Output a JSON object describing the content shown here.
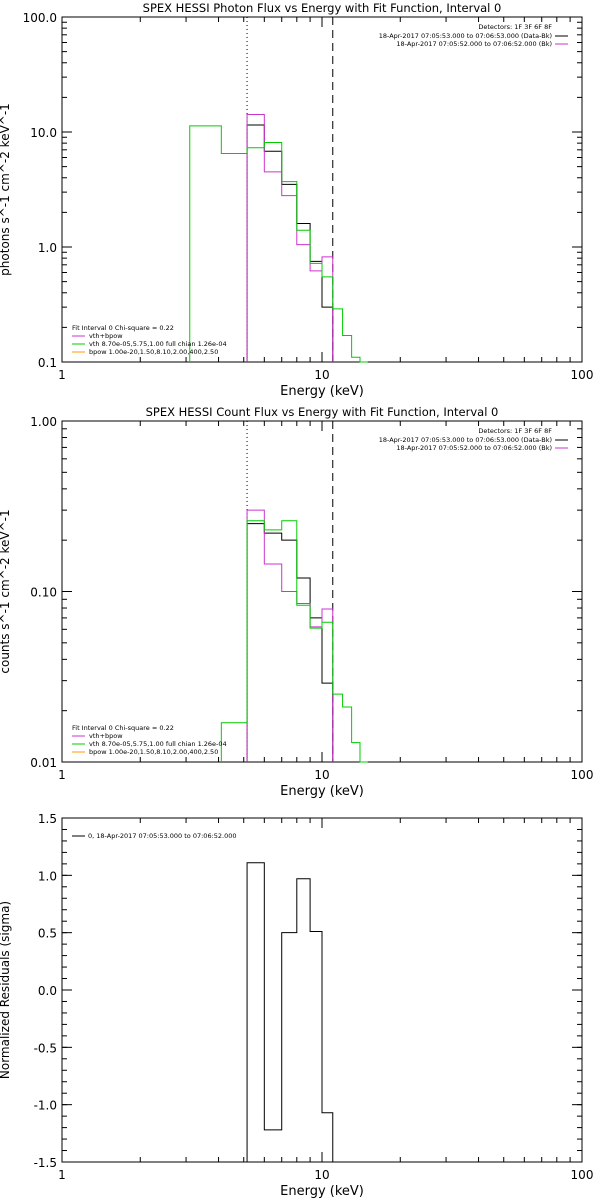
{
  "colors": {
    "background": "#ffffff",
    "axis": "#000000",
    "data": "#000000",
    "total_model": "#cc33cc",
    "vth": "#00cc00",
    "bpow": "#ff9900"
  },
  "chart_data": [
    {
      "type": "line",
      "style": "histogram steps",
      "title": "SPEX HESSI Photon Flux vs Energy with Fit Function, Interval 0",
      "xlabel": "Energy (keV)",
      "ylabel": "photons s^-1 cm^-2 keV^-1",
      "xscale": "log",
      "yscale": "log",
      "xlim": [
        1,
        100
      ],
      "ylim": [
        0.1,
        100
      ],
      "xticks": [
        "1",
        "10",
        "100"
      ],
      "yticks": [
        "0.1",
        "1.0",
        "10.0",
        "100.0"
      ],
      "vlines": [
        {
          "x": 5.15,
          "style": "dotted"
        },
        {
          "x": 11.0,
          "style": "dashed"
        }
      ],
      "legend_topright": {
        "header": "Detectors: 1F 3F 6F 8F",
        "entries": [
          {
            "text": "18-Apr-2017 07:05:53.000 to 07:06:53.000 (Data-Bk)",
            "color": "#000000"
          },
          {
            "text": "18-Apr-2017 07:05:52.000 to 07:06:52.000 (Bk)",
            "color": "#cc33cc"
          }
        ]
      },
      "legend_bottomleft": {
        "header": "Fit Interval 0   Chi-square = 0.22",
        "entries": [
          {
            "text": "vth+bpow",
            "color": "#cc33cc"
          },
          {
            "text": "vth 8.70e-05,5.75,1.00   full chian 1.26e-04",
            "color": "#00cc00"
          },
          {
            "text": "bpow 1.00e-20,1.50,8.10,2.00,400,2.50",
            "color": "#ff9900"
          }
        ]
      },
      "series": [
        {
          "color": "#000000",
          "edges": [
            5.15,
            6.0,
            7.0,
            8.0,
            9.0,
            10.0,
            11.0
          ],
          "values": [
            11.5,
            6.8,
            3.5,
            1.6,
            0.75,
            0.3
          ]
        },
        {
          "color": "#cc33cc",
          "edges": [
            5.15,
            6.0,
            7.0,
            8.0,
            9.0,
            10.0,
            11.0
          ],
          "values": [
            14.2,
            4.5,
            2.8,
            1.05,
            0.62,
            0.82
          ]
        },
        {
          "color": "#00cc00",
          "edges": [
            3.1,
            4.1,
            5.15,
            6.0,
            7.0,
            8.0,
            9.0,
            10.0,
            11.0,
            12.0,
            13.0,
            14.0,
            15.0
          ],
          "values": [
            11.3,
            6.5,
            7.3,
            8.1,
            3.7,
            1.4,
            0.72,
            0.55,
            0.29,
            0.17,
            0.11,
            0.1
          ],
          "floor": 0.1
        }
      ]
    },
    {
      "type": "line",
      "style": "histogram steps",
      "title": "SPEX HESSI Count Flux vs Energy with Fit Function, Interval 0",
      "xlabel": "Energy (keV)",
      "ylabel": "counts s^-1 cm^-2 keV^-1",
      "xscale": "log",
      "yscale": "log",
      "xlim": [
        1,
        100
      ],
      "ylim": [
        0.01,
        1
      ],
      "xticks": [
        "1",
        "10",
        "100"
      ],
      "yticks": [
        "0.01",
        "0.10",
        "1.00"
      ],
      "vlines": [
        {
          "x": 5.15,
          "style": "dotted"
        },
        {
          "x": 11.0,
          "style": "dashed"
        }
      ],
      "legend_topright": {
        "header": "Detectors: 1F 3F 6F 8F",
        "entries": [
          {
            "text": "18-Apr-2017 07:05:53.000 to 07:06:53.000 (Data-Bk)",
            "color": "#000000"
          },
          {
            "text": "18-Apr-2017 07:05:52.000 to 07:06:52.000 (Bk)",
            "color": "#cc33cc"
          }
        ]
      },
      "legend_bottomleft": {
        "header": "Fit Interval 0   Chi-square = 0.22",
        "entries": [
          {
            "text": "vth+bpow",
            "color": "#cc33cc"
          },
          {
            "text": "vth 8.70e-05,5.75,1.00   full chian 1.26e-04",
            "color": "#00cc00"
          },
          {
            "text": "bpow 1.00e-20,1.50,8.10,2.00,400,2.50",
            "color": "#ff9900"
          }
        ]
      },
      "series": [
        {
          "color": "#000000",
          "edges": [
            5.15,
            6.0,
            7.0,
            8.0,
            9.0,
            10.0,
            11.0
          ],
          "values": [
            0.25,
            0.22,
            0.2,
            0.12,
            0.07,
            0.029
          ]
        },
        {
          "color": "#cc33cc",
          "edges": [
            5.15,
            6.0,
            7.0,
            8.0,
            9.0,
            10.0,
            11.0
          ],
          "values": [
            0.3,
            0.145,
            0.1,
            0.085,
            0.062,
            0.079
          ]
        },
        {
          "color": "#00cc00",
          "edges": [
            4.1,
            5.15,
            6.0,
            7.0,
            8.0,
            9.0,
            10.0,
            11.0,
            12.0,
            13.0,
            14.0,
            15.0
          ],
          "values": [
            0.017,
            0.26,
            0.23,
            0.26,
            0.083,
            0.061,
            0.066,
            0.025,
            0.021,
            0.013,
            0.01
          ],
          "floor": 0.01
        }
      ]
    },
    {
      "type": "line",
      "style": "histogram steps",
      "title": "",
      "xlabel": "Energy (keV)",
      "ylabel": "Normalized Residuals (sigma)",
      "xscale": "log",
      "yscale": "linear",
      "xlim": [
        1,
        100
      ],
      "ylim": [
        -1.5,
        1.5
      ],
      "xticks": [
        "1",
        "10",
        "100"
      ],
      "yticks": [
        "-1.5",
        "-1.0",
        "-0.5",
        "0.0",
        "0.5",
        "1.0",
        "1.5"
      ],
      "legend_topleft": {
        "entries": [
          {
            "text": "0, 18-Apr-2017 07:05:53.000 to 07:06:52.000",
            "color": "#000000"
          }
        ]
      },
      "series": [
        {
          "color": "#000000",
          "edges": [
            5.15,
            6.0,
            7.0,
            8.0,
            9.0,
            10.0,
            11.0
          ],
          "values": [
            1.11,
            -1.22,
            0.5,
            0.97,
            0.51,
            -1.07
          ],
          "floor": -1.5
        }
      ]
    }
  ]
}
